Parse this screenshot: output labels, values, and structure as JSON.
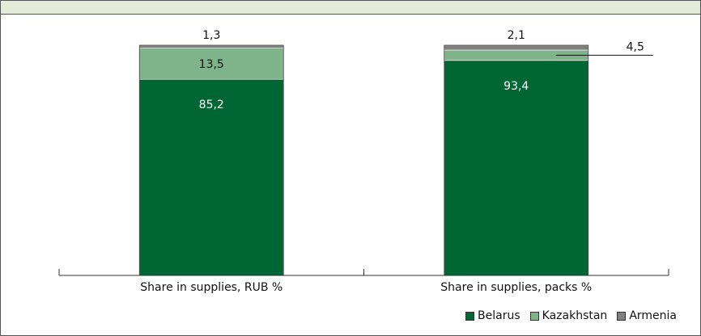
{
  "chart_data": {
    "type": "bar",
    "stacked": true,
    "categories": [
      "Share in supplies, RUB %",
      "Share in supplies, packs %"
    ],
    "series": [
      {
        "name": "Belarus",
        "values": [
          85.2,
          93.4
        ],
        "labels": [
          "85,2",
          "93,4"
        ],
        "color": "#006633"
      },
      {
        "name": "Kazakhstan",
        "values": [
          13.5,
          4.5
        ],
        "labels": [
          "13,5",
          "4,5"
        ],
        "color": "#7fb38a"
      },
      {
        "name": "Armenia",
        "values": [
          1.3,
          2.1
        ],
        "labels": [
          "1,3",
          "2,1"
        ],
        "color": "#808080"
      }
    ],
    "ylim": [
      0,
      100
    ],
    "legend_position": "bottom-right",
    "grid": false
  }
}
